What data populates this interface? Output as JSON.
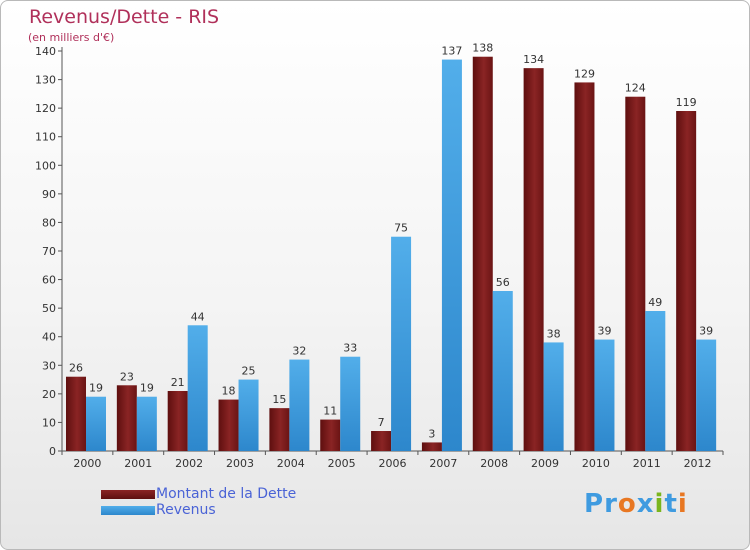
{
  "chart_data": {
    "type": "bar",
    "title": "Revenus/Dette - RIS",
    "subtitle": "(en milliers d'€)",
    "categories": [
      "2000",
      "2001",
      "2002",
      "2003",
      "2004",
      "2005",
      "2006",
      "2007",
      "2008",
      "2009",
      "2010",
      "2011",
      "2012"
    ],
    "series": [
      {
        "name": "Montant de la Dette",
        "color": "#7a1a1a",
        "values": [
          26,
          23,
          21,
          18,
          15,
          11,
          7,
          3,
          138,
          134,
          129,
          124,
          119
        ]
      },
      {
        "name": "Revenus",
        "color": "#3f9be0",
        "values": [
          19,
          19,
          44,
          25,
          32,
          33,
          75,
          137,
          56,
          38,
          39,
          49,
          39
        ]
      }
    ],
    "ylim": [
      0,
      140
    ],
    "yticks": [
      0,
      10,
      20,
      30,
      40,
      50,
      60,
      70,
      80,
      90,
      100,
      110,
      120,
      130,
      140
    ],
    "grid": false,
    "legend_position": "bottom-left"
  },
  "logo": {
    "text": "Proxiti",
    "colors": [
      "#3f9be0",
      "#3f9be0",
      "#e87722",
      "#3f9be0",
      "#7ab51d",
      "#3f9be0",
      "#e87722"
    ]
  }
}
